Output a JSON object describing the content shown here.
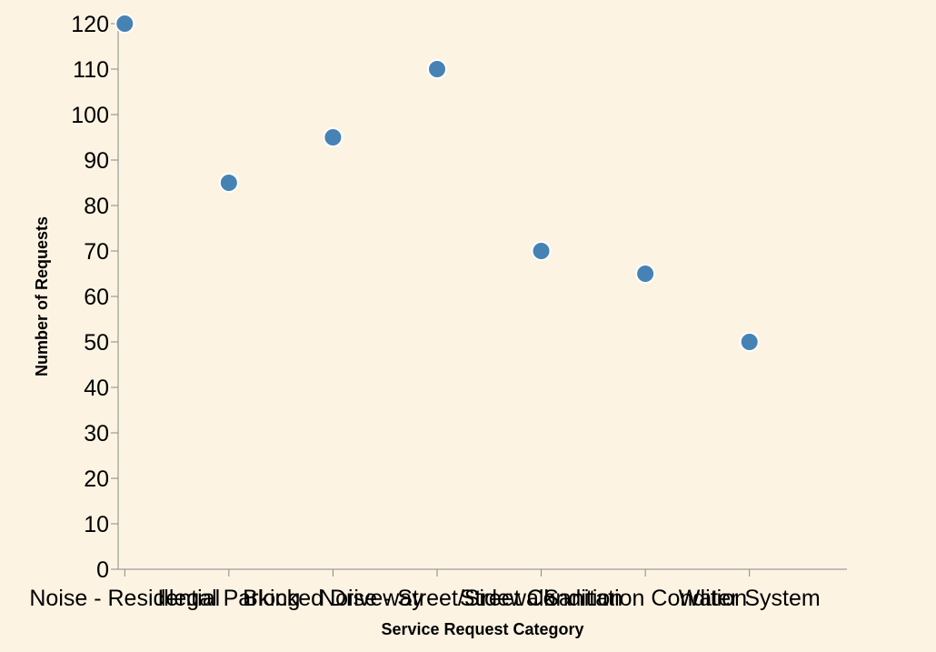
{
  "chart_data": {
    "type": "scatter",
    "title": "",
    "xlabel": "Service Request Category",
    "ylabel": "Number of Requests",
    "categories": [
      "Noise - Residential",
      "Illegal Parking",
      "Blocked Driveway",
      "Noise - Street/Sidewalk",
      "Street Condition",
      "Sanitation Condition",
      "Water System"
    ],
    "values": [
      120,
      85,
      95,
      110,
      70,
      65,
      50
    ],
    "ylim": [
      0,
      120
    ],
    "yticks": [
      0,
      10,
      20,
      30,
      40,
      50,
      60,
      70,
      80,
      90,
      100,
      110,
      120
    ],
    "grid": false,
    "point_color": "#4682b4",
    "background": "#fdf3e3"
  }
}
